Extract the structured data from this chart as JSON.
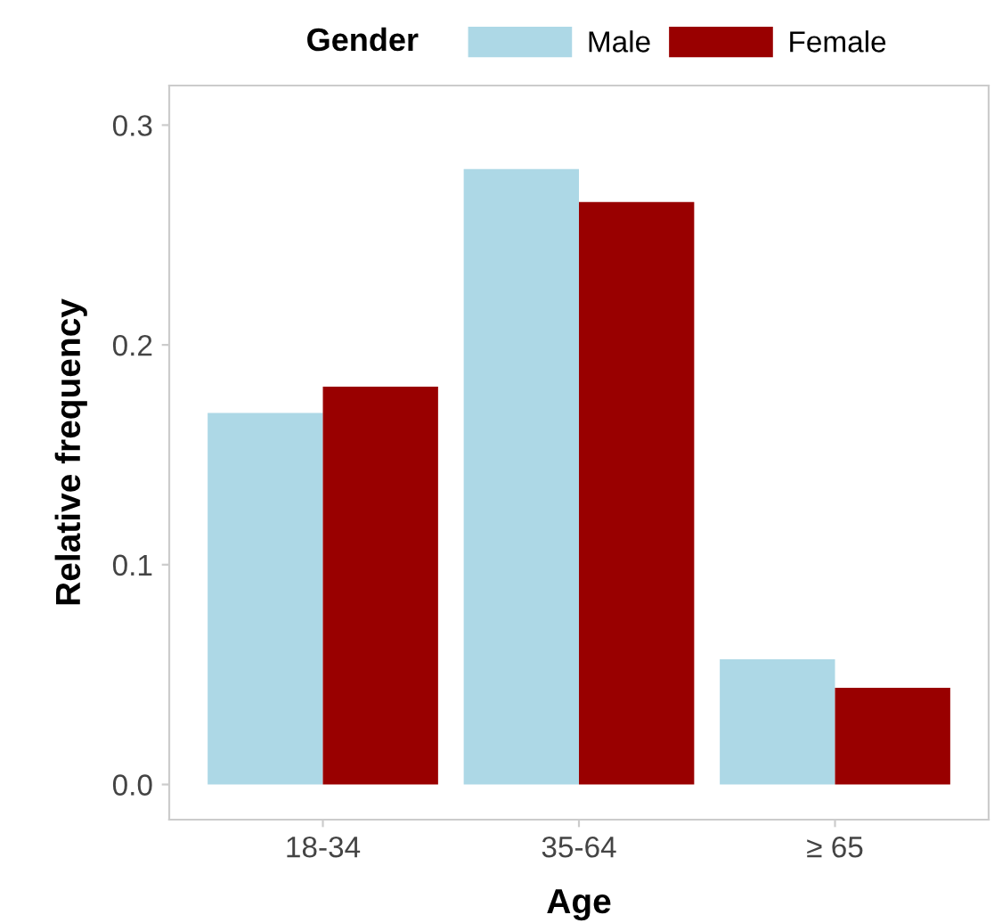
{
  "chart_data": {
    "type": "bar",
    "xlabel": "Age",
    "ylabel": "Relative frequency",
    "legend_title": "Gender",
    "categories": [
      "18-34",
      "35-64",
      "≥ 65"
    ],
    "series": [
      {
        "name": "Male",
        "color": "#add8e6",
        "values": [
          0.169,
          0.28,
          0.057
        ]
      },
      {
        "name": "Female",
        "color": "#990000",
        "values": [
          0.181,
          0.265,
          0.044
        ]
      }
    ],
    "ylim": [
      -0.016,
      0.318
    ],
    "yticks": [
      {
        "value": 0,
        "label": "0.0"
      },
      0.1,
      0.2,
      0.3
    ],
    "grid": false,
    "legend": "top"
  }
}
